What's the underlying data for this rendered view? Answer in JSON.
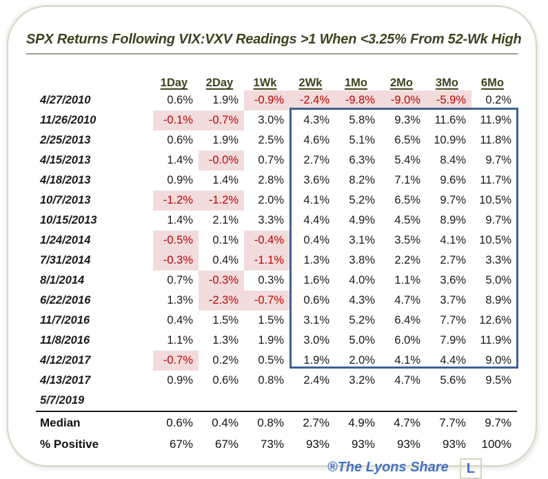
{
  "title": "SPX Returns Following VIX:VXV Readings >1  When <3.25% From 52-Wk High",
  "footer": {
    "brand": "®The Lyons Share",
    "logo_letter": "L"
  },
  "colors": {
    "title_olive": "#3f411e",
    "negative_text": "#c00000",
    "negative_bg": "#f2dcdb",
    "box_border": "#3e6094",
    "card_border": "#d8d4c0",
    "brand_blue": "#4472c4",
    "divider_black": "#1c1c1c"
  },
  "chart_data": {
    "type": "table",
    "title": "SPX Returns Following VIX:VXV Readings >1 When <3.25% From 52-Wk High",
    "columns": [
      "1Day",
      "2Day",
      "1Wk",
      "2Wk",
      "1Mo",
      "2Mo",
      "3Mo",
      "6Mo"
    ],
    "rows": [
      {
        "date": "4/27/2010",
        "values": [
          "0.6%",
          "1.9%",
          "-0.9%",
          "-2.4%",
          "-9.8%",
          "-9.0%",
          "-5.9%",
          "0.2%"
        ]
      },
      {
        "date": "11/26/2010",
        "values": [
          "-0.1%",
          "-0.7%",
          "3.0%",
          "4.3%",
          "5.8%",
          "9.3%",
          "11.6%",
          "11.9%"
        ]
      },
      {
        "date": "2/25/2013",
        "values": [
          "0.6%",
          "1.9%",
          "2.5%",
          "4.6%",
          "5.1%",
          "6.5%",
          "10.9%",
          "11.8%"
        ]
      },
      {
        "date": "4/15/2013",
        "values": [
          "1.4%",
          "-0.0%",
          "0.7%",
          "2.7%",
          "6.3%",
          "5.4%",
          "8.4%",
          "9.7%"
        ]
      },
      {
        "date": "4/18/2013",
        "values": [
          "0.9%",
          "1.4%",
          "2.8%",
          "3.6%",
          "8.2%",
          "7.1%",
          "9.6%",
          "11.7%"
        ]
      },
      {
        "date": "10/7/2013",
        "values": [
          "-1.2%",
          "-1.2%",
          "2.0%",
          "4.1%",
          "5.2%",
          "6.5%",
          "9.7%",
          "10.5%"
        ]
      },
      {
        "date": "10/15/2013",
        "values": [
          "1.4%",
          "2.1%",
          "3.3%",
          "4.4%",
          "4.9%",
          "4.5%",
          "8.9%",
          "9.7%"
        ]
      },
      {
        "date": "1/24/2014",
        "values": [
          "-0.5%",
          "0.1%",
          "-0.4%",
          "0.4%",
          "3.1%",
          "3.5%",
          "4.1%",
          "10.5%"
        ]
      },
      {
        "date": "7/31/2014",
        "values": [
          "-0.3%",
          "0.4%",
          "-1.1%",
          "1.3%",
          "3.8%",
          "2.2%",
          "2.7%",
          "3.3%"
        ]
      },
      {
        "date": "8/1/2014",
        "values": [
          "0.7%",
          "-0.3%",
          "0.3%",
          "1.6%",
          "4.0%",
          "1.1%",
          "3.6%",
          "5.0%"
        ]
      },
      {
        "date": "6/22/2016",
        "values": [
          "1.3%",
          "-2.3%",
          "-0.7%",
          "0.6%",
          "4.3%",
          "4.7%",
          "3.7%",
          "8.9%"
        ]
      },
      {
        "date": "11/7/2016",
        "values": [
          "0.4%",
          "1.5%",
          "1.5%",
          "3.1%",
          "5.2%",
          "6.4%",
          "7.7%",
          "12.6%"
        ]
      },
      {
        "date": "11/8/2016",
        "values": [
          "1.1%",
          "1.3%",
          "1.9%",
          "3.0%",
          "5.0%",
          "6.0%",
          "7.9%",
          "11.9%"
        ]
      },
      {
        "date": "4/12/2017",
        "values": [
          "-0.7%",
          "0.2%",
          "0.5%",
          "1.9%",
          "2.0%",
          "4.1%",
          "4.4%",
          "9.0%"
        ]
      },
      {
        "date": "4/13/2017",
        "values": [
          "0.9%",
          "0.6%",
          "0.8%",
          "2.4%",
          "3.2%",
          "4.7%",
          "5.6%",
          "9.5%"
        ]
      },
      {
        "date": "5/7/2019",
        "values": [
          "",
          "",
          "",
          "",
          "",
          "",
          "",
          ""
        ]
      }
    ],
    "summary": [
      {
        "label": "Median",
        "values": [
          "0.6%",
          "0.4%",
          "0.8%",
          "2.7%",
          "4.9%",
          "4.7%",
          "7.7%",
          "9.7%"
        ]
      },
      {
        "label": "% Positive",
        "values": [
          "67%",
          "67%",
          "73%",
          "93%",
          "93%",
          "93%",
          "93%",
          "100%"
        ]
      }
    ],
    "annotations": {
      "highlight_box": "navy rectangle around columns 2Wk-6Mo for rows 11/26/2010 through 4/13/2017",
      "negative_cells": "red text on light pink fill for all negative values"
    },
    "legend_position": "none",
    "grid": false
  }
}
